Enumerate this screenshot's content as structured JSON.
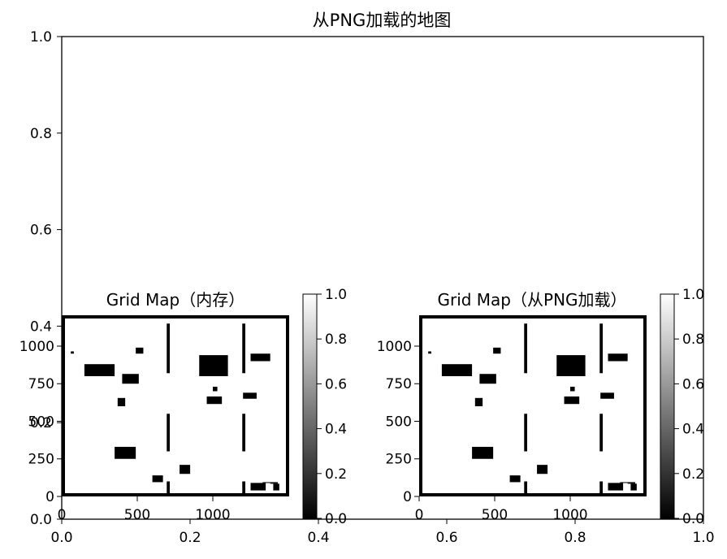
{
  "figure": {
    "title": "从PNG加载的地图"
  },
  "chart_data": [
    {
      "type": "line",
      "title": "从PNG加载的地图",
      "xlim": [
        0.0,
        1.0
      ],
      "ylim": [
        0.0,
        1.0
      ],
      "x_ticks": [
        "0.0",
        "0.2",
        "0.4",
        "0.6",
        "0.8",
        "1.0"
      ],
      "y_ticks": [
        "0.0",
        "0.2",
        "0.4",
        "0.6",
        "0.8",
        "1.0"
      ],
      "grid": false,
      "series": []
    },
    {
      "type": "heatmap",
      "title": "Grid Map（内存）",
      "cmap": "gray",
      "border": "black",
      "xlim": [
        0,
        1500
      ],
      "ylim": [
        0,
        1200
      ],
      "x_ticks": [
        "0",
        "500",
        "1000"
      ],
      "y_ticks": [
        "0",
        "250",
        "500",
        "750",
        "1000"
      ],
      "colorbar": {
        "range": [
          0.0,
          1.0
        ],
        "ticks": [
          "0.0",
          "0.2",
          "0.4",
          "0.6",
          "0.8",
          "1.0"
        ]
      },
      "obstacles": [
        {
          "x0": 150,
          "x1": 350,
          "y0": 800,
          "y1": 880
        },
        {
          "x0": 400,
          "x1": 510,
          "y0": 750,
          "y1": 815
        },
        {
          "x0": 490,
          "x1": 540,
          "y0": 950,
          "y1": 990
        },
        {
          "x0": 370,
          "x1": 420,
          "y0": 600,
          "y1": 655
        },
        {
          "x0": 350,
          "x1": 490,
          "y0": 250,
          "y1": 330
        },
        {
          "x0": 600,
          "x1": 670,
          "y0": 95,
          "y1": 140
        },
        {
          "x0": 780,
          "x1": 850,
          "y0": 150,
          "y1": 210
        },
        {
          "x0": 910,
          "x1": 1100,
          "y0": 800,
          "y1": 940
        },
        {
          "x0": 1000,
          "x1": 1030,
          "y0": 700,
          "y1": 730
        },
        {
          "x0": 960,
          "x1": 1060,
          "y0": 615,
          "y1": 665
        },
        {
          "x0": 1200,
          "x1": 1290,
          "y0": 650,
          "y1": 690
        },
        {
          "x0": 1250,
          "x1": 1380,
          "y0": 900,
          "y1": 950
        },
        {
          "x0": 1250,
          "x1": 1350,
          "y0": 40,
          "y1": 90
        },
        {
          "x0": 1400,
          "x1": 1440,
          "y0": 40,
          "y1": 85
        },
        {
          "x0": 1330,
          "x1": 1430,
          "y0": 90,
          "y1": 95
        },
        {
          "x0": 1380,
          "x1": 1430,
          "y0": 85,
          "y1": 90
        },
        {
          "x0": 60,
          "x1": 80,
          "y0": 950,
          "y1": 965
        },
        {
          "x0": 695,
          "x1": 715,
          "y0": 820,
          "y1": 1150
        },
        {
          "x0": 695,
          "x1": 715,
          "y0": 300,
          "y1": 550
        },
        {
          "x0": 695,
          "x1": 715,
          "y0": 0,
          "y1": 100
        },
        {
          "x0": 1195,
          "x1": 1215,
          "y0": 820,
          "y1": 1150
        },
        {
          "x0": 1195,
          "x1": 1215,
          "y0": 300,
          "y1": 550
        },
        {
          "x0": 1195,
          "x1": 1215,
          "y0": 0,
          "y1": 100
        }
      ]
    },
    {
      "type": "heatmap",
      "title": "Grid Map（从PNG加载）",
      "cmap": "gray",
      "border": "black",
      "xlim": [
        0,
        1500
      ],
      "ylim": [
        0,
        1200
      ],
      "x_ticks": [
        "0",
        "500",
        "1000"
      ],
      "y_ticks": [
        "0",
        "250",
        "500",
        "750",
        "1000"
      ],
      "colorbar": {
        "range": [
          0.0,
          1.0
        ],
        "ticks": [
          "0.0",
          "0.2",
          "0.4",
          "0.6",
          "0.8",
          "1.0"
        ]
      },
      "obstacles": [
        {
          "x0": 150,
          "x1": 350,
          "y0": 800,
          "y1": 880
        },
        {
          "x0": 400,
          "x1": 510,
          "y0": 750,
          "y1": 815
        },
        {
          "x0": 490,
          "x1": 540,
          "y0": 950,
          "y1": 990
        },
        {
          "x0": 370,
          "x1": 420,
          "y0": 600,
          "y1": 655
        },
        {
          "x0": 350,
          "x1": 490,
          "y0": 250,
          "y1": 330
        },
        {
          "x0": 600,
          "x1": 670,
          "y0": 95,
          "y1": 140
        },
        {
          "x0": 780,
          "x1": 850,
          "y0": 150,
          "y1": 210
        },
        {
          "x0": 910,
          "x1": 1100,
          "y0": 800,
          "y1": 940
        },
        {
          "x0": 1000,
          "x1": 1030,
          "y0": 700,
          "y1": 730
        },
        {
          "x0": 960,
          "x1": 1060,
          "y0": 615,
          "y1": 665
        },
        {
          "x0": 1200,
          "x1": 1290,
          "y0": 650,
          "y1": 690
        },
        {
          "x0": 1250,
          "x1": 1380,
          "y0": 900,
          "y1": 950
        },
        {
          "x0": 1250,
          "x1": 1350,
          "y0": 40,
          "y1": 90
        },
        {
          "x0": 1400,
          "x1": 1440,
          "y0": 40,
          "y1": 85
        },
        {
          "x0": 1330,
          "x1": 1430,
          "y0": 90,
          "y1": 95
        },
        {
          "x0": 1380,
          "x1": 1430,
          "y0": 85,
          "y1": 90
        },
        {
          "x0": 60,
          "x1": 80,
          "y0": 950,
          "y1": 965
        },
        {
          "x0": 695,
          "x1": 715,
          "y0": 820,
          "y1": 1150
        },
        {
          "x0": 695,
          "x1": 715,
          "y0": 300,
          "y1": 550
        },
        {
          "x0": 695,
          "x1": 715,
          "y0": 0,
          "y1": 100
        },
        {
          "x0": 1195,
          "x1": 1215,
          "y0": 820,
          "y1": 1150
        },
        {
          "x0": 1195,
          "x1": 1215,
          "y0": 300,
          "y1": 550
        },
        {
          "x0": 1195,
          "x1": 1215,
          "y0": 0,
          "y1": 100
        }
      ]
    }
  ]
}
